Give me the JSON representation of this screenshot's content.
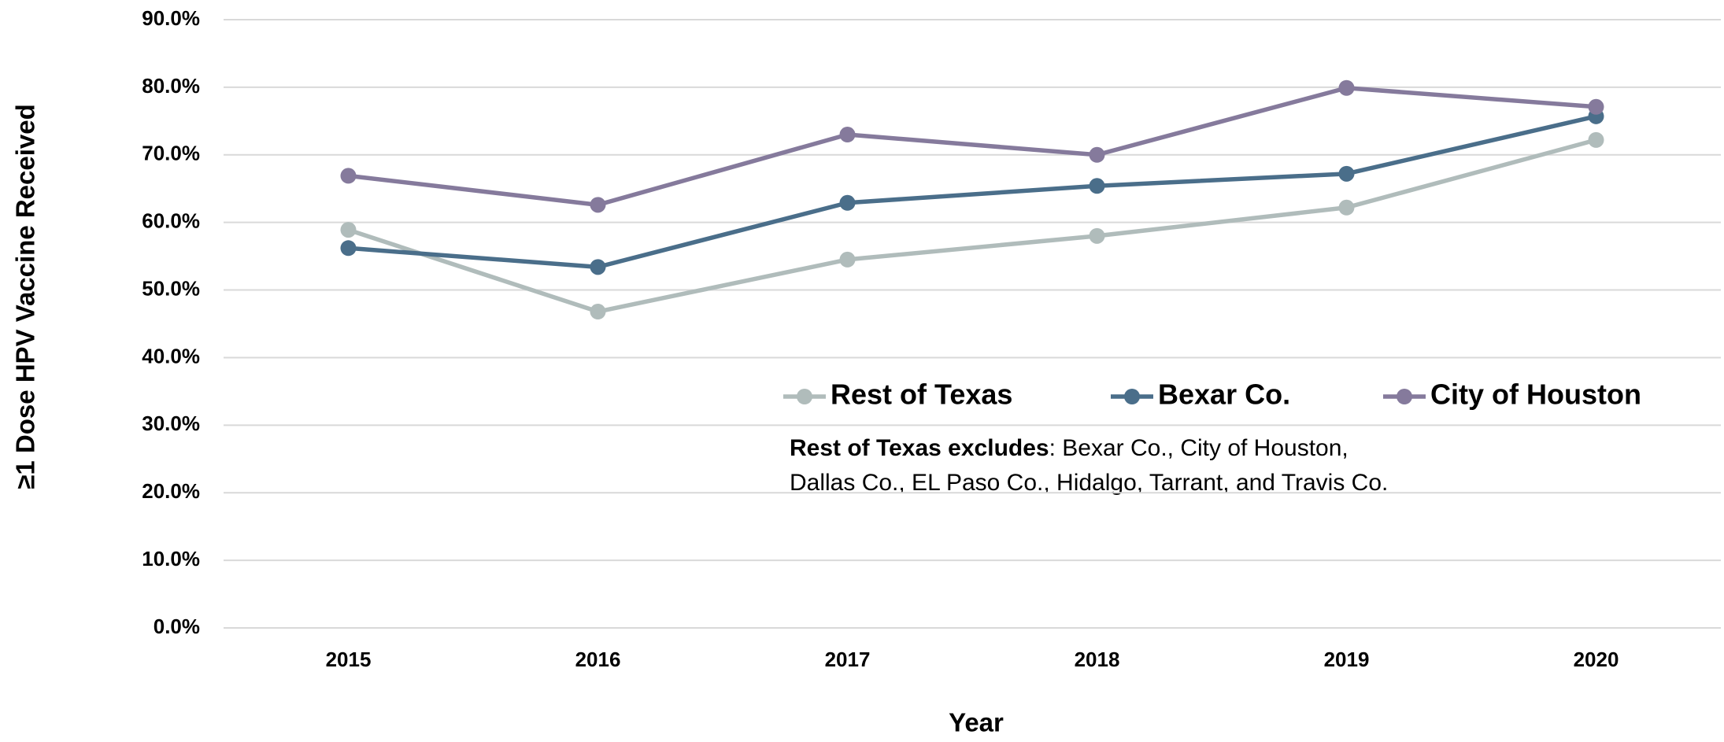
{
  "chart_data": {
    "type": "line",
    "x_label": "Year",
    "y_label": "≥1 Dose HPV Vaccine Received",
    "categories": [
      "2015",
      "2016",
      "2017",
      "2018",
      "2019",
      "2020"
    ],
    "series": [
      {
        "name": "Rest of Texas",
        "color": "#b0bcbb",
        "values": [
          58.9,
          46.8,
          54.5,
          58.0,
          62.2,
          72.2
        ]
      },
      {
        "name": "Bexar Co.",
        "color": "#4a6e8a",
        "values": [
          56.2,
          53.4,
          62.9,
          65.4,
          67.2,
          75.7
        ]
      },
      {
        "name": "City of Houston",
        "color": "#857a9c",
        "values": [
          66.9,
          62.6,
          73.0,
          70.0,
          79.9,
          77.1
        ]
      }
    ],
    "ylim": [
      0,
      90
    ],
    "yticks": [
      {
        "value": 0,
        "label": "0.0%"
      },
      {
        "value": 10,
        "label": "10.0%"
      },
      {
        "value": 20,
        "label": "20.0%"
      },
      {
        "value": 30,
        "label": "30.0%"
      },
      {
        "value": 40,
        "label": "40.0%"
      },
      {
        "value": 50,
        "label": "50.0%"
      },
      {
        "value": 60,
        "label": "60.0%"
      },
      {
        "value": 70,
        "label": "70.0%"
      },
      {
        "value": 80,
        "label": "80.0%"
      },
      {
        "value": 90,
        "label": "90.0%"
      }
    ],
    "grid": true,
    "note": {
      "bold": "Rest of Texas excludes",
      "lines": [
        ": Bexar Co., City of Houston,",
        "Dallas Co., EL Paso Co., Hidalgo, Tarrant, and  Travis Co."
      ]
    }
  }
}
